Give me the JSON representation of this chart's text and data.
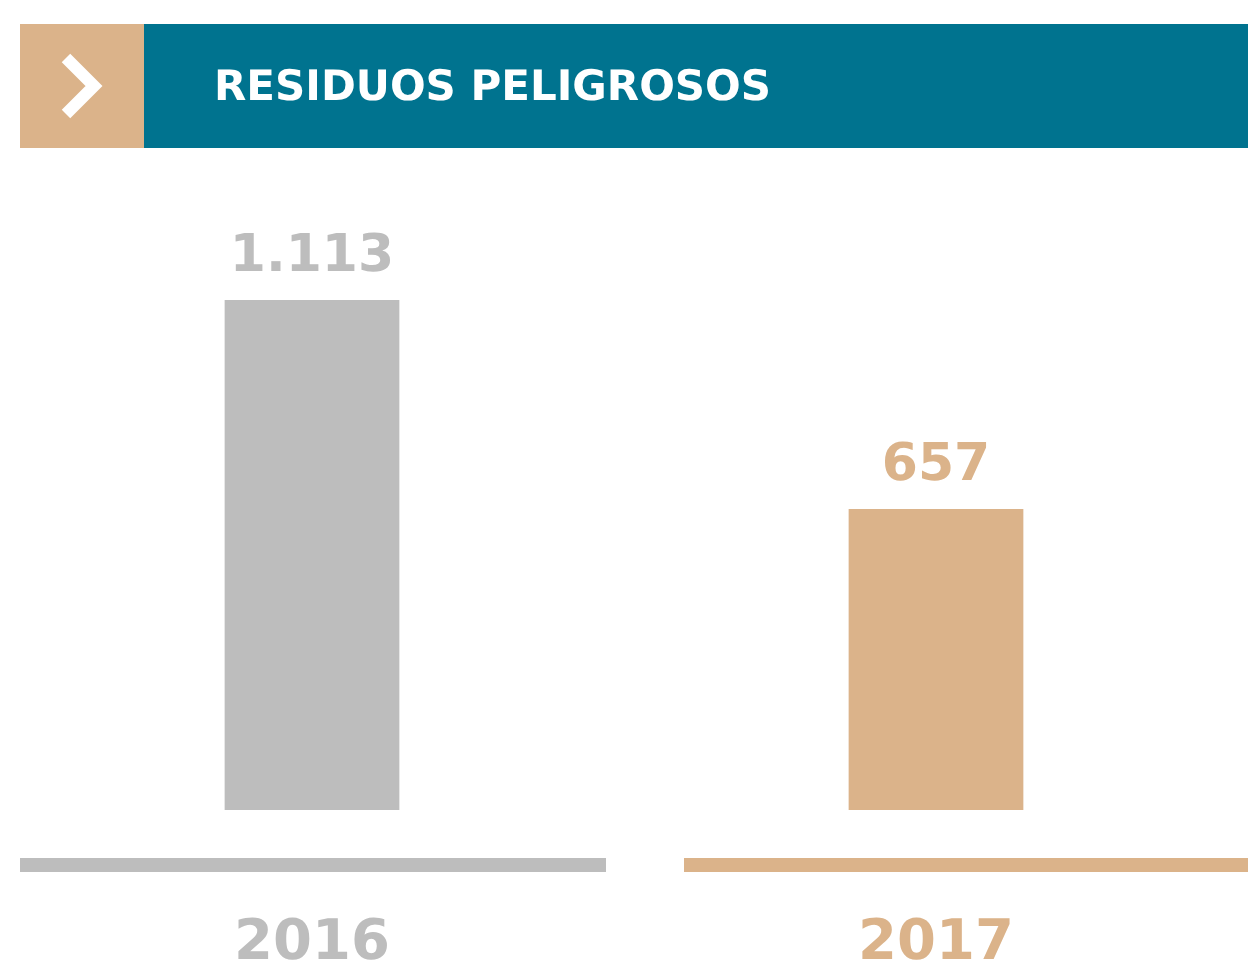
{
  "chart_data": {
    "type": "bar",
    "title": "RESIDUOS PELIGROSOS",
    "categories": [
      "2016",
      "2017"
    ],
    "values": [
      1113,
      657
    ],
    "colors": [
      "#bdbdbd",
      "#dbb38a"
    ],
    "value_labels": [
      "1.113",
      "657"
    ]
  }
}
